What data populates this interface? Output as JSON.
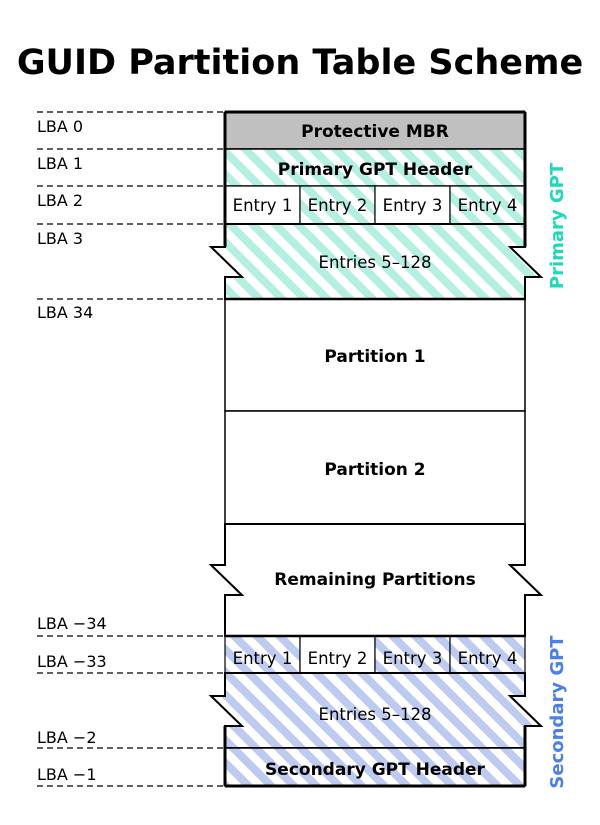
{
  "title": "GUID Partition Table Scheme",
  "colors": {
    "protective_mbr": "#c0c0c0",
    "primary_hatch": "#b3f0e2",
    "secondary_hatch": "#bccbef",
    "primary_label": "#1dd9b9",
    "secondary_label": "#4a80e8"
  },
  "lba_labels": [
    "LBA 0",
    "LBA 1",
    "LBA 2",
    "LBA 3",
    "LBA 34",
    "LBA −34",
    "LBA −33",
    "LBA −2",
    "LBA −1"
  ],
  "blocks": {
    "protective_mbr": "Protective MBR",
    "primary_header": "Primary GPT Header",
    "primary_entries": [
      "Entry 1",
      "Entry 2",
      "Entry 3",
      "Entry 4"
    ],
    "primary_rest": "Entries 5–128",
    "partition1": "Partition 1",
    "partition2": "Partition 2",
    "remaining": "Remaining Partitions",
    "secondary_entries": [
      "Entry 1",
      "Entry 2",
      "Entry 3",
      "Entry 4"
    ],
    "secondary_rest": "Entries 5–128",
    "secondary_header": "Secondary GPT Header"
  },
  "side_labels": {
    "primary": "Primary GPT",
    "secondary": "Secondary GPT"
  }
}
